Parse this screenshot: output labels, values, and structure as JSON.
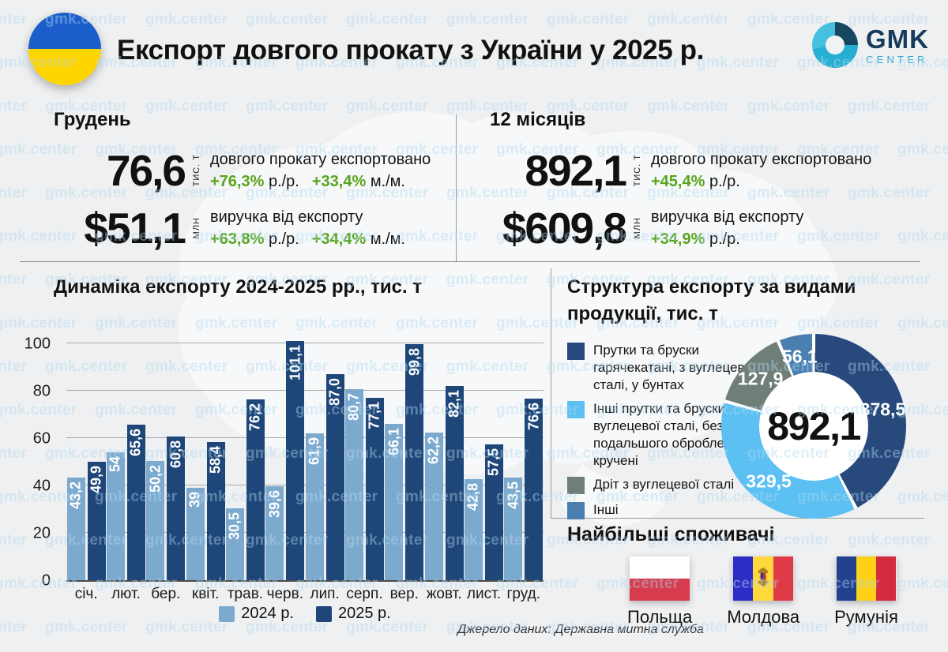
{
  "watermark": "gmk.center",
  "background_color": "#eff0f1",
  "header": {
    "title": "Експорт довгого прокату з України у 2025 р.",
    "logo": {
      "name": "GMK",
      "sub": "CENTER"
    }
  },
  "stats": {
    "december": {
      "heading": "Грудень",
      "rows": [
        {
          "value": "76,6",
          "unit": "тис. т",
          "desc": "довгого прокату експортовано",
          "deltas": [
            {
              "pct": "+76,3%",
              "label": "р./р."
            },
            {
              "pct": "+33,4%",
              "label": "м./м."
            }
          ]
        },
        {
          "value": "$51,1",
          "unit": "млн",
          "desc": "виручка від експорту",
          "deltas": [
            {
              "pct": "+63,8%",
              "label": "р./р."
            },
            {
              "pct": "+34,4%",
              "label": "м./м."
            }
          ]
        }
      ]
    },
    "twelve_months": {
      "heading": "12 місяців",
      "rows": [
        {
          "value": "892,1",
          "unit": "тис. т",
          "desc": "довгого прокату експортовано",
          "deltas": [
            {
              "pct": "+45,4%",
              "label": "р./р."
            }
          ]
        },
        {
          "value": "$609,8",
          "unit": "млн",
          "desc": "виручка від експорту",
          "deltas": [
            {
              "pct": "+34,9%",
              "label": "р./р."
            }
          ]
        }
      ]
    }
  },
  "chart_data": [
    {
      "type": "bar",
      "title": "Динаміка експорту 2024-2025 рр., тис. т",
      "categories": [
        "січ.",
        "лют.",
        "бер.",
        "квіт.",
        "трав.",
        "черв.",
        "лип.",
        "серп.",
        "вер.",
        "жовт.",
        "лист.",
        "груд."
      ],
      "series": [
        {
          "name": "2024 р.",
          "color": "#7ca9ce",
          "values": [
            43.2,
            54,
            50.2,
            39,
            30.5,
            39.6,
            61.9,
            80.7,
            66.1,
            62.2,
            42.8,
            43.5
          ],
          "labels": [
            "43,2",
            "54",
            "50,2",
            "39",
            "30,5",
            "39,6",
            "61,9",
            "80,7",
            "66,1",
            "62,2",
            "42,8",
            "43,5"
          ]
        },
        {
          "name": "2025 р.",
          "color": "#1e4678",
          "values": [
            49.9,
            65.6,
            60.8,
            58.4,
            76.2,
            101.1,
            87.0,
            77.1,
            99.8,
            82.1,
            57.5,
            76.6
          ],
          "labels": [
            "49,9",
            "65,6",
            "60,8",
            "58,4",
            "76,2",
            "101,1",
            "87,0",
            "77,1",
            "99,8",
            "82,1",
            "57,5",
            "76,6"
          ]
        }
      ],
      "ylim": [
        0,
        100
      ],
      "yticks": [
        0,
        20,
        40,
        60,
        80,
        100
      ],
      "grid": true,
      "legend_position": "bottom"
    },
    {
      "type": "pie",
      "title": "Структура експорту за видами продукції, тис. т",
      "center_total": "892,1",
      "slices": [
        {
          "label": "Прутки та бруски гарячекатані, з вуглецевої сталі, у бунтах",
          "value": 378.5,
          "value_label": "378,5",
          "color": "#27497b"
        },
        {
          "label": "Інші прутки та бруски з вуглецевої сталі, без подальшого оброблення, кручені",
          "value": 329.5,
          "value_label": "329,5",
          "color": "#5cc0f2"
        },
        {
          "label": "Дріт з вуглецевої сталі",
          "value": 127.9,
          "value_label": "127,9",
          "color": "#6f7f77"
        },
        {
          "label": "Інші",
          "value": 56.1,
          "value_label": "56,1",
          "color": "#4a7fb0"
        }
      ],
      "legend_position": "left"
    }
  ],
  "consumers": {
    "heading": "Найбільші споживачі",
    "items": [
      {
        "name": "Польща",
        "flag": "poland",
        "colors": [
          "#ffffff",
          "#d63c4e"
        ]
      },
      {
        "name": "Молдова",
        "flag": "moldova",
        "colors": [
          "#2b2dc4",
          "#ffd83b",
          "#df3b47"
        ]
      },
      {
        "name": "Румунія",
        "flag": "romania",
        "colors": [
          "#24418f",
          "#fcd116",
          "#d52b3f"
        ]
      }
    ]
  },
  "source": "Джерело даних: Державна митна служба",
  "colors": {
    "accent_green": "#58a51b",
    "ukraine_flag_blue": "#1b5ecb",
    "ukraine_flag_yellow": "#ffd500",
    "watermark": "#cde6f5"
  }
}
